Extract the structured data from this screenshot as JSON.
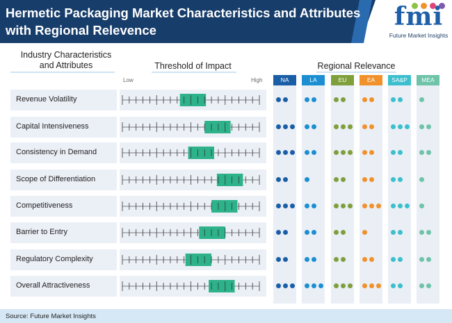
{
  "title": "Hermetic Packaging Market Characteristics and Attributes with Regional Relevence",
  "logo": {
    "text": "fmi",
    "subtitle": "Future Market Insights"
  },
  "headers": {
    "characteristics": "Industry Characteristics and Attributes",
    "threshold": "Threshold of Impact",
    "regional": "Regional Relevance",
    "low": "Low",
    "high": "High"
  },
  "chart_data": {
    "type": "table",
    "threshold_scale": "0 (Low) to 1 (High)",
    "regions": [
      {
        "name": "NA",
        "color": "#1a5ea6"
      },
      {
        "name": "LA",
        "color": "#1b8fd2"
      },
      {
        "name": "EU",
        "color": "#7e9f3b"
      },
      {
        "name": "EA",
        "color": "#f0912c"
      },
      {
        "name": "SA&P",
        "color": "#3bbfce"
      },
      {
        "name": "MEA",
        "color": "#6ec3a9"
      }
    ],
    "impact_bar_color": "#2db28a",
    "rows": [
      {
        "label": "Revenue Volatility",
        "impact": [
          0.42,
          0.61
        ],
        "relevance": [
          2,
          2,
          2,
          2,
          2,
          1
        ]
      },
      {
        "label": "Capital Intensiveness",
        "impact": [
          0.6,
          0.79
        ],
        "relevance": [
          3,
          2,
          3,
          2,
          3,
          2
        ]
      },
      {
        "label": "Consistency in Demand",
        "impact": [
          0.48,
          0.67
        ],
        "relevance": [
          3,
          2,
          3,
          2,
          2,
          2
        ]
      },
      {
        "label": "Scope of Differentiation",
        "impact": [
          0.69,
          0.88
        ],
        "relevance": [
          2,
          1,
          2,
          2,
          2,
          1
        ]
      },
      {
        "label": "Competitiveness",
        "impact": [
          0.65,
          0.84
        ],
        "relevance": [
          3,
          2,
          3,
          3,
          3,
          1
        ]
      },
      {
        "label": "Barrier to Entry",
        "impact": [
          0.56,
          0.75
        ],
        "relevance": [
          2,
          2,
          2,
          1,
          2,
          2
        ]
      },
      {
        "label": "Regulatory Complexity",
        "impact": [
          0.46,
          0.65
        ],
        "relevance": [
          2,
          2,
          2,
          2,
          2,
          2
        ]
      },
      {
        "label": "Overall Attractiveness",
        "impact": [
          0.63,
          0.82
        ],
        "relevance": [
          3,
          3,
          3,
          3,
          2,
          2
        ]
      }
    ]
  },
  "footer": "Source: Future Market Insights"
}
